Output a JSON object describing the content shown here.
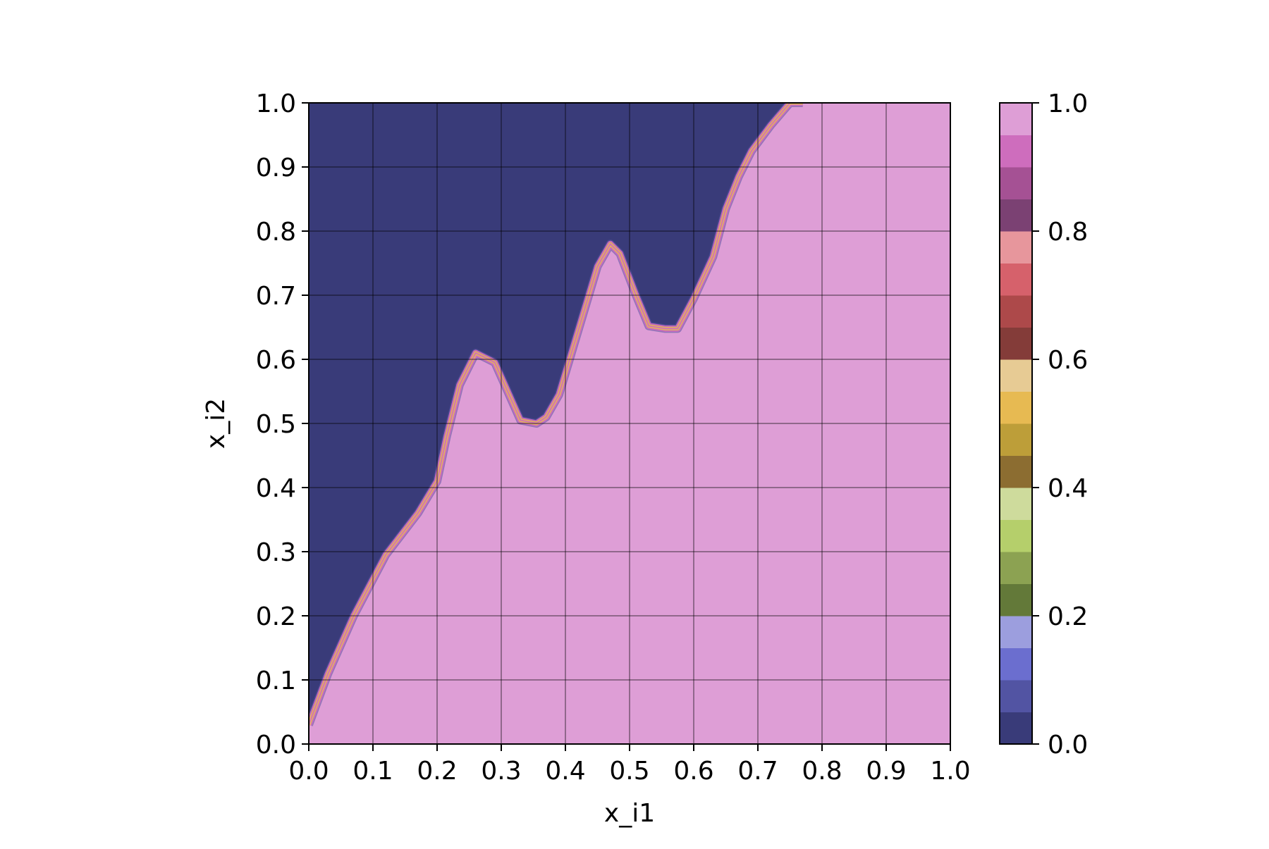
{
  "chart_data": {
    "type": "heatmap",
    "title": "",
    "xlabel": "x_i1",
    "ylabel": "x_i2",
    "xlim": [
      0,
      1
    ],
    "ylim": [
      0,
      1
    ],
    "grid": true,
    "x_ticks": [
      "0.0",
      "0.1",
      "0.2",
      "0.3",
      "0.4",
      "0.5",
      "0.6",
      "0.7",
      "0.8",
      "0.9",
      "1.0"
    ],
    "y_ticks": [
      "0.0",
      "0.1",
      "0.2",
      "0.3",
      "0.4",
      "0.5",
      "0.6",
      "0.7",
      "0.8",
      "0.9",
      "1.0"
    ],
    "colorbar": {
      "range": [
        0,
        1
      ],
      "levels": 20,
      "ticks": [
        "0.0",
        "0.2",
        "0.4",
        "0.6",
        "0.8",
        "1.0"
      ],
      "colors": [
        "#393b79",
        "#5254a3",
        "#6b6ecf",
        "#9c9ede",
        "#637939",
        "#8ca252",
        "#b5cf6b",
        "#cedb9c",
        "#8c6d31",
        "#bd9e39",
        "#e7ba52",
        "#e7cb94",
        "#843c39",
        "#ad494a",
        "#d6616b",
        "#e7969c",
        "#7b4173",
        "#a55194",
        "#ce6dbd",
        "#de9ed6"
      ]
    },
    "regions": {
      "upper_left_value": 0.0,
      "lower_right_value": 1.0,
      "upper_color": "#393b79",
      "lower_color": "#de9ed6"
    },
    "boundary": {
      "description_points_x": [
        0.0,
        0.03,
        0.07,
        0.12,
        0.17,
        0.2,
        0.215,
        0.235,
        0.26,
        0.29,
        0.31,
        0.33,
        0.355,
        0.37,
        0.39,
        0.42,
        0.45,
        0.47,
        0.485,
        0.51,
        0.53,
        0.555,
        0.575,
        0.6,
        0.63,
        0.65,
        0.67,
        0.69,
        0.72,
        0.75,
        0.77
      ],
      "description_points_y": [
        0.03,
        0.11,
        0.2,
        0.295,
        0.36,
        0.41,
        0.48,
        0.56,
        0.61,
        0.595,
        0.55,
        0.505,
        0.5,
        0.51,
        0.545,
        0.645,
        0.745,
        0.78,
        0.765,
        0.7,
        0.652,
        0.648,
        0.648,
        0.695,
        0.76,
        0.835,
        0.885,
        0.925,
        0.965,
        1.0,
        1.0
      ]
    }
  }
}
